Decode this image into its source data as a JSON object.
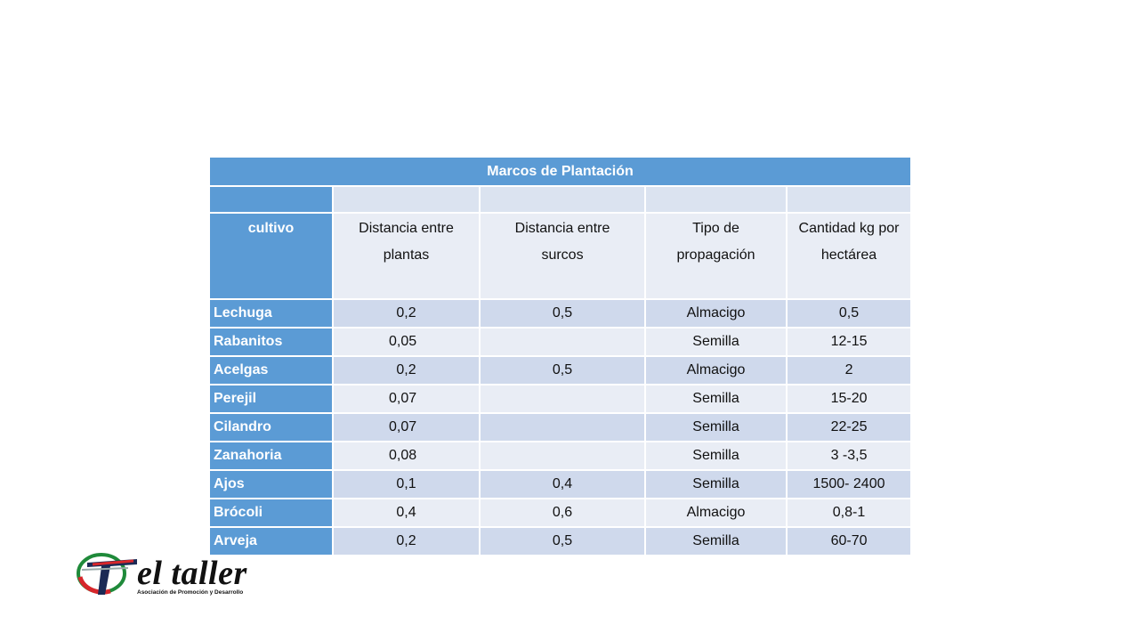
{
  "table": {
    "title": "Marcos de Plantación",
    "headers": [
      "cultivo",
      "Distancia entre plantas",
      "Distancia entre surcos",
      "Tipo de propagación",
      "Cantidad kg por hectárea"
    ],
    "rows": [
      {
        "cultivo": "Lechuga",
        "plantas": "0,2",
        "surcos": "0,5",
        "propagacion": "Almacigo",
        "cantidad": "0,5"
      },
      {
        "cultivo": "Rabanitos",
        "plantas": "0,05",
        "surcos": "",
        "propagacion": "Semilla",
        "cantidad": "12-15"
      },
      {
        "cultivo": "Acelgas",
        "plantas": "0,2",
        "surcos": "0,5",
        "propagacion": "Almacigo",
        "cantidad": "2"
      },
      {
        "cultivo": "Perejil",
        "plantas": "0,07",
        "surcos": "",
        "propagacion": "Semilla",
        "cantidad": "15-20"
      },
      {
        "cultivo": "Cilandro",
        "plantas": "0,07",
        "surcos": "",
        "propagacion": "Semilla",
        "cantidad": "22-25"
      },
      {
        "cultivo": "Zanahoria",
        "plantas": "0,08",
        "surcos": "",
        "propagacion": "Semilla",
        "cantidad": "3 -3,5"
      },
      {
        "cultivo": "Ajos",
        "plantas": "0,1",
        "surcos": "0,4",
        "propagacion": "Semilla",
        "cantidad": "1500- 2400"
      },
      {
        "cultivo": "Brócoli",
        "plantas": "0,4",
        "surcos": "0,6",
        "propagacion": "Almacigo",
        "cantidad": "0,8-1"
      },
      {
        "cultivo": "Arveja",
        "plantas": "0,2",
        "surcos": "0,5",
        "propagacion": "Semilla",
        "cantidad": "60-70"
      }
    ]
  },
  "logo": {
    "name": "el taller",
    "subtitle": "Asociación de Promoción y Desarrollo",
    "colors": {
      "red": "#d7262b",
      "green": "#1f8a3a",
      "navy": "#1b2a55"
    }
  },
  "colors": {
    "header_blue": "#5b9bd5",
    "row_dark": "#cfd9ec",
    "row_light": "#e9edf5"
  }
}
